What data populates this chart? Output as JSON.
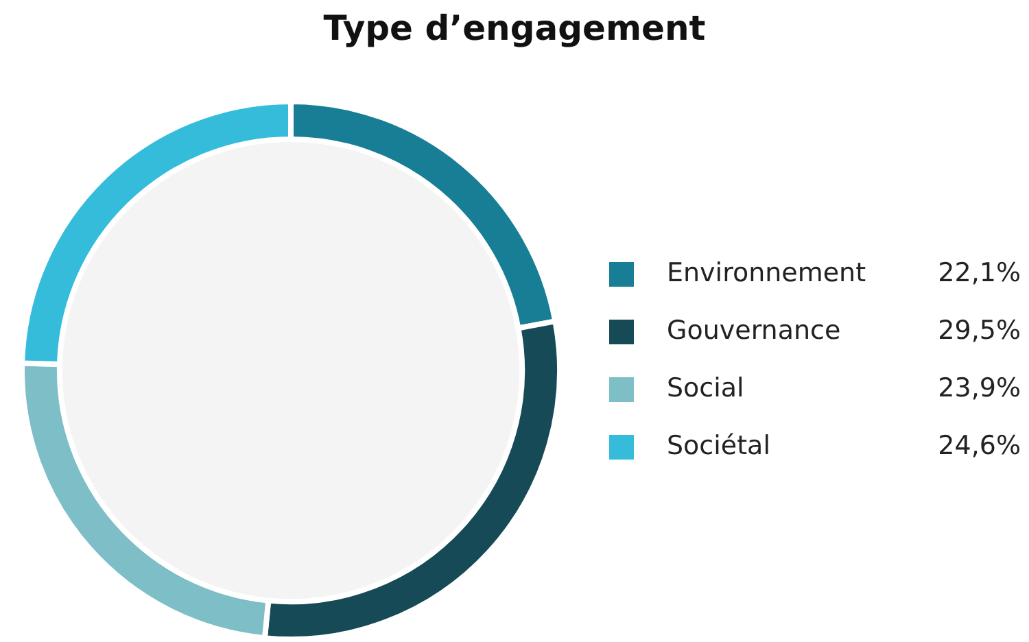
{
  "chart_data": {
    "type": "donut",
    "title": "Type d’engagement",
    "categories": [
      "Environnement",
      "Gouvernance",
      "Social",
      "Sociétal"
    ],
    "values": [
      22.1,
      29.5,
      23.9,
      24.6
    ],
    "value_labels": [
      "22,1%",
      "29,5%",
      "23,9%",
      "24,6%"
    ],
    "colors": [
      "#187e95",
      "#164a56",
      "#7dbec7",
      "#35bcdb"
    ],
    "legend": "right"
  }
}
